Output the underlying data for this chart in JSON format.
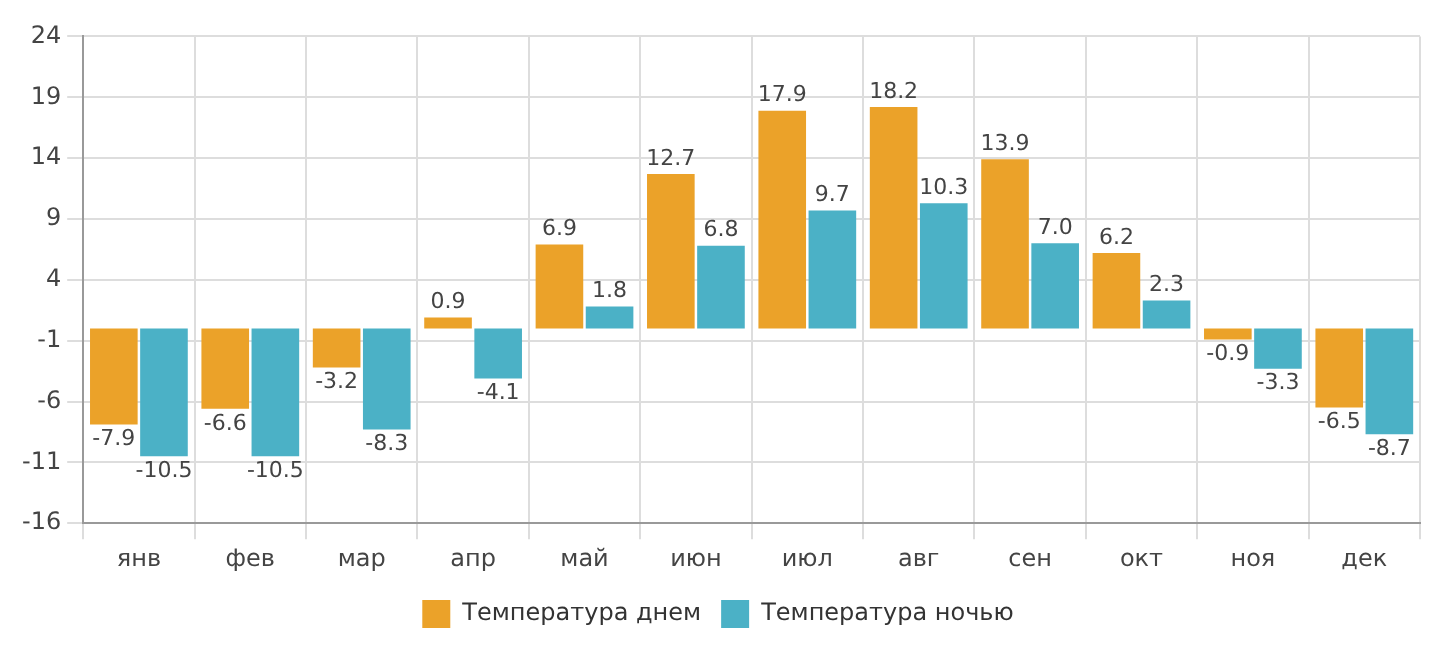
{
  "chart_data": {
    "type": "bar",
    "categories": [
      "янв",
      "фев",
      "мар",
      "апр",
      "май",
      "июн",
      "июл",
      "авг",
      "сен",
      "окт",
      "ноя",
      "дек"
    ],
    "series": [
      {
        "name": "Температура днем",
        "color": "#eba229",
        "values": [
          -7.9,
          -6.6,
          -3.2,
          0.9,
          6.9,
          12.7,
          17.9,
          18.2,
          13.9,
          6.2,
          -0.9,
          -6.5
        ],
        "value_labels": [
          "-7.9",
          "-6.6",
          "-3.2",
          "0.9",
          "6.9",
          "12.7",
          "17.9",
          "18.2",
          "13.9",
          "6.2",
          "-0.9",
          "-6.5"
        ]
      },
      {
        "name": "Температура ночью",
        "color": "#4bb1c6",
        "values": [
          -10.5,
          -10.5,
          -8.3,
          -4.1,
          1.8,
          6.8,
          9.7,
          10.3,
          7.0,
          2.3,
          -3.3,
          -8.7
        ],
        "value_labels": [
          "-10.5",
          "-10.5",
          "-8.3",
          "-4.1",
          "1.8",
          "6.8",
          "9.7",
          "10.3",
          "7.0",
          "2.3",
          "-3.3",
          "-8.7"
        ]
      }
    ],
    "ylim": [
      -16,
      24
    ],
    "yticks": [
      -16,
      -11,
      -6,
      -1,
      4,
      9,
      14,
      19,
      24
    ],
    "grid": true,
    "legend": "bottom"
  }
}
